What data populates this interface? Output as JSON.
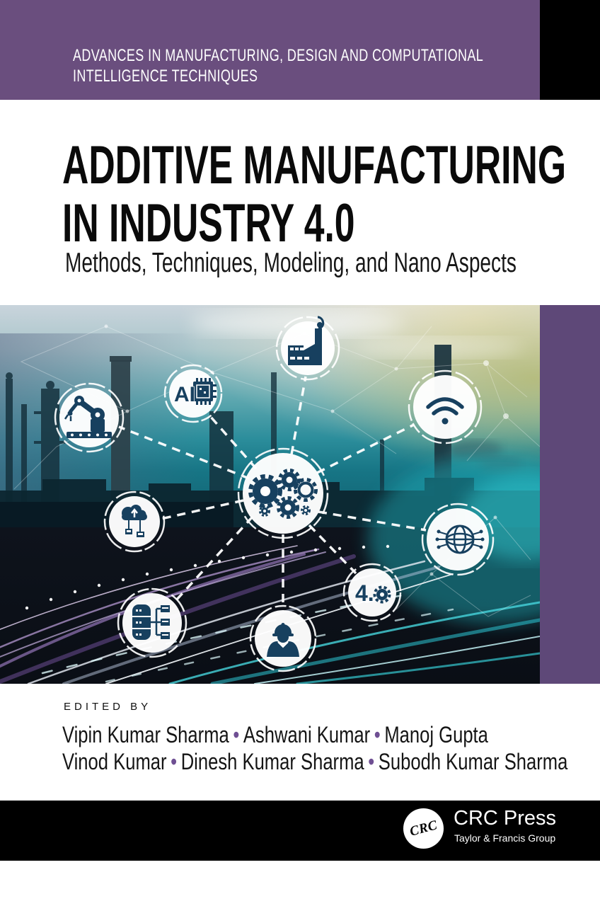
{
  "series_banner": {
    "line1": "ADVANCES IN MANUFACTURING, DESIGN AND COMPUTATIONAL",
    "line2": "INTELLIGENCE TECHNIQUES"
  },
  "title": {
    "line1": "ADDITIVE MANUFACTURING",
    "line2": "IN INDUSTRY 4.0",
    "subtitle": "Methods, Techniques, Modeling, and Nano Aspects"
  },
  "editors": {
    "label": "EDITED BY",
    "separator": "•",
    "line1": [
      "Vipin Kumar Sharma",
      "Ashwani Kumar",
      "Manoj Gupta"
    ],
    "line2": [
      "Vinod Kumar",
      "Dinesh Kumar Sharma",
      "Subodh Kumar Sharma"
    ]
  },
  "publisher": {
    "monogram": "CRC",
    "name": "CRC Press",
    "tagline": "Taylor & Francis Group"
  },
  "artwork": {
    "icons": [
      "factory-icon",
      "ai-chip-icon",
      "robot-arm-icon",
      "wifi-icon",
      "gears-icon",
      "cloud-computing-icon",
      "globe-network-icon",
      "industry-4-0-icon",
      "database-icon",
      "engineer-icon"
    ],
    "icon_labels": {
      "ai": "AI",
      "industry40": "4."
    }
  },
  "colors": {
    "banner_purple": "#6A4E7E",
    "stripe_purple": "#5E4878",
    "bullet_purple": "#6F4F93",
    "icon_navy": "#17405F",
    "footer_black": "#000000"
  }
}
